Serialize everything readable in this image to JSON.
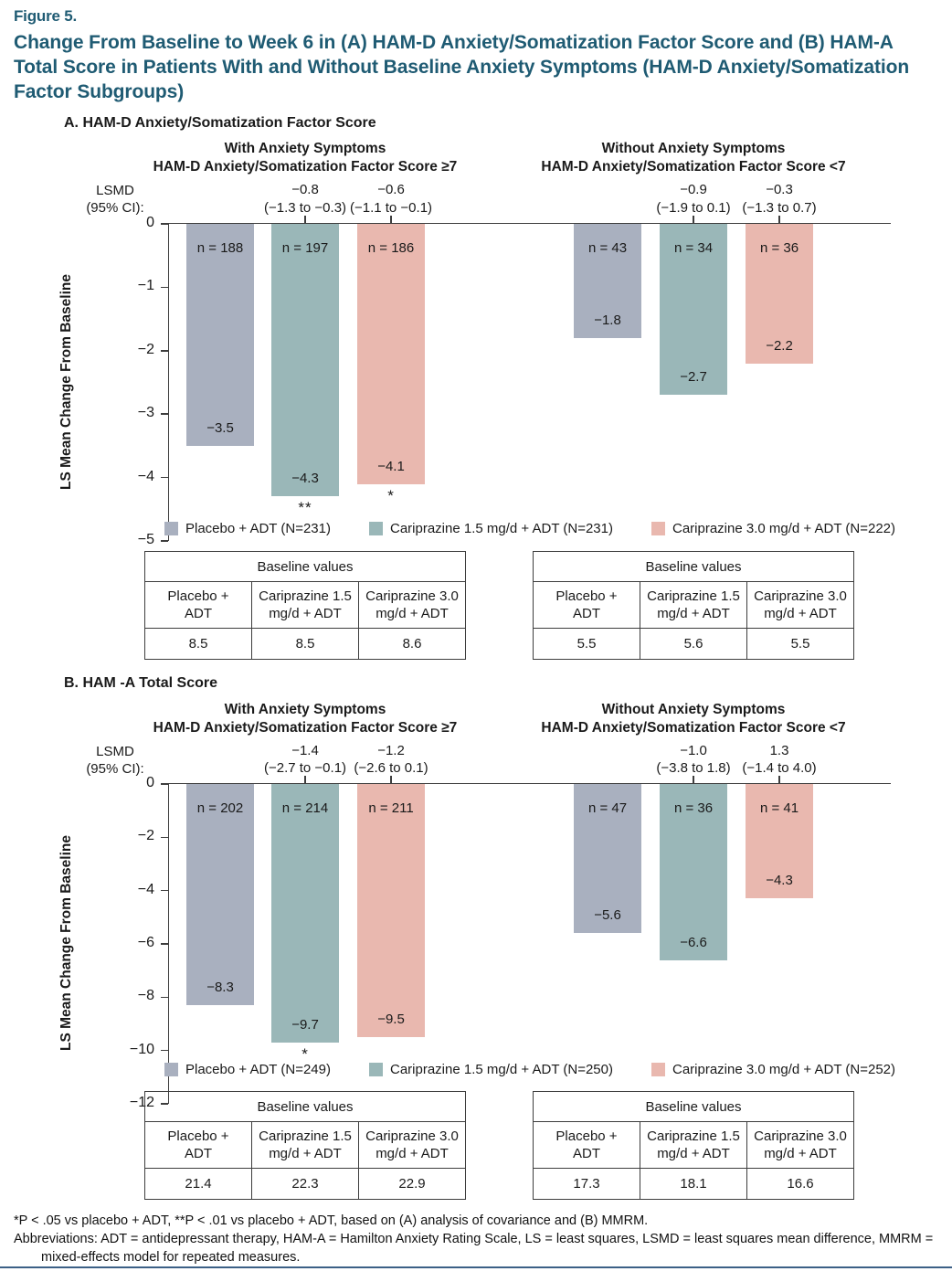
{
  "page": {
    "figure_label": "Figure 5.",
    "title": "Change From Baseline to Week 6 in (A) HAM-D Anxiety/Somatization Factor Score and (B) HAM-A Total Score in Patients With and Without Baseline Anxiety Symptoms (HAM-D Anxiety/Somatization Factor Subgroups)",
    "footnote_line1": "*P < .05 vs placebo + ADT, **P < .01 vs placebo + ADT, based on (A) analysis of covariance and (B) MMRM.",
    "footnote_line2": "Abbreviations: ADT = antidepressant therapy, HAM-A = Hamilton Anxiety Rating Scale, LS = least squares, LSMD = least squares mean difference, MMRM = mixed-effects model for repeated measures.",
    "colors": {
      "title_teal": "#1f5b73",
      "bottom_rule_blue": "#3c6086",
      "axis_gray": "#3d3d3d",
      "series": [
        "#a9b0bf",
        "#9ab7b8",
        "#e9b8af"
      ]
    }
  },
  "chart_data": [
    {
      "type": "bar",
      "panel_label": "A. HAM-D Anxiety/Somatization Factor Score",
      "ylabel": "LS Mean Change From Baseline",
      "ylim": [
        0,
        -5
      ],
      "yticks": [
        "0",
        "−1",
        "−2",
        "−3",
        "−4",
        "−5"
      ],
      "ytick_values": [
        0,
        -1,
        -2,
        -3,
        -4,
        -5
      ],
      "lsmd_header": "LSMD\n(95% CI):",
      "grid": false,
      "legend_position": "bottom",
      "series_names": [
        "Placebo + ADT",
        "Cariprazine 1.5 mg/d + ADT",
        "Cariprazine 3.0 mg/d + ADT"
      ],
      "groups": [
        {
          "title_line1": "With Anxiety Symptoms",
          "title_line2": "HAM-D Anxiety/Somatization Factor Score ≥7",
          "lsmd": [
            {
              "value": "−0.8",
              "ci": "(−1.3 to −0.3)"
            },
            {
              "value": "−0.6",
              "ci": "(−1.1 to −0.1)"
            }
          ],
          "bars": [
            {
              "n_label": "n = 188",
              "value": -3.5,
              "value_label": "−3.5",
              "sig": ""
            },
            {
              "n_label": "n = 197",
              "value": -4.3,
              "value_label": "−4.3",
              "sig": "**"
            },
            {
              "n_label": "n = 186",
              "value": -4.1,
              "value_label": "−4.1",
              "sig": "*"
            }
          ]
        },
        {
          "title_line1": "Without Anxiety Symptoms",
          "title_line2": "HAM-D Anxiety/Somatization Factor Score <7",
          "lsmd": [
            {
              "value": "−0.9",
              "ci": "(−1.9 to 0.1)"
            },
            {
              "value": "−0.3",
              "ci": "(−1.3 to 0.7)"
            }
          ],
          "bars": [
            {
              "n_label": "n = 43",
              "value": -1.8,
              "value_label": "−1.8",
              "sig": ""
            },
            {
              "n_label": "n = 34",
              "value": -2.7,
              "value_label": "−2.7",
              "sig": ""
            },
            {
              "n_label": "n = 36",
              "value": -2.2,
              "value_label": "−2.2",
              "sig": ""
            }
          ]
        }
      ],
      "legend": [
        "Placebo + ADT (N=231)",
        "Cariprazine 1.5 mg/d + ADT (N=231)",
        "Cariprazine 3.0 mg/d + ADT (N=222)"
      ],
      "tables": [
        {
          "title": "Baseline values",
          "columns": [
            [
              "Placebo +",
              "ADT"
            ],
            [
              "Cariprazine 1.5",
              "mg/d + ADT"
            ],
            [
              "Cariprazine 3.0",
              "mg/d + ADT"
            ]
          ],
          "values": [
            "8.5",
            "8.5",
            "8.6"
          ]
        },
        {
          "title": "Baseline values",
          "columns": [
            [
              "Placebo +",
              "ADT"
            ],
            [
              "Cariprazine 1.5",
              "mg/d + ADT"
            ],
            [
              "Cariprazine 3.0",
              "mg/d + ADT"
            ]
          ],
          "values": [
            "5.5",
            "5.6",
            "5.5"
          ]
        }
      ]
    },
    {
      "type": "bar",
      "panel_label": "B. HAM -A Total Score",
      "ylabel": "LS Mean Change From Baseline",
      "ylim": [
        0,
        -12
      ],
      "yticks": [
        "0",
        "−2",
        "−4",
        "−6",
        "−8",
        "−10",
        "−12"
      ],
      "ytick_values": [
        0,
        -2,
        -4,
        -6,
        -8,
        -10,
        -12
      ],
      "lsmd_header": "LSMD\n(95% CI):",
      "grid": false,
      "legend_position": "bottom",
      "series_names": [
        "Placebo + ADT",
        "Cariprazine 1.5 mg/d + ADT",
        "Cariprazine 3.0 mg/d + ADT"
      ],
      "groups": [
        {
          "title_line1": "With Anxiety Symptoms",
          "title_line2": "HAM-D Anxiety/Somatization Factor Score ≥7",
          "lsmd": [
            {
              "value": "−1.4",
              "ci": "(−2.7 to −0.1)"
            },
            {
              "value": "−1.2",
              "ci": "(−2.6 to 0.1)"
            }
          ],
          "bars": [
            {
              "n_label": "n = 202",
              "value": -8.3,
              "value_label": "−8.3",
              "sig": ""
            },
            {
              "n_label": "n = 214",
              "value": -9.7,
              "value_label": "−9.7",
              "sig": "*"
            },
            {
              "n_label": "n = 211",
              "value": -9.5,
              "value_label": "−9.5",
              "sig": ""
            }
          ]
        },
        {
          "title_line1": "Without Anxiety Symptoms",
          "title_line2": "HAM-D Anxiety/Somatization Factor Score <7",
          "lsmd": [
            {
              "value": "−1.0",
              "ci": "(−3.8 to 1.8)"
            },
            {
              "value": "1.3",
              "ci": "(−1.4 to 4.0)"
            }
          ],
          "bars": [
            {
              "n_label": "n = 47",
              "value": -5.6,
              "value_label": "−5.6",
              "sig": ""
            },
            {
              "n_label": "n = 36",
              "value": -6.6,
              "value_label": "−6.6",
              "sig": ""
            },
            {
              "n_label": "n = 41",
              "value": -4.3,
              "value_label": "−4.3",
              "sig": ""
            }
          ]
        }
      ],
      "legend": [
        "Placebo + ADT (N=249)",
        "Cariprazine 1.5 mg/d + ADT (N=250)",
        "Cariprazine 3.0 mg/d + ADT (N=252)"
      ],
      "tables": [
        {
          "title": "Baseline values",
          "columns": [
            [
              "Placebo +",
              "ADT"
            ],
            [
              "Cariprazine 1.5",
              "mg/d + ADT"
            ],
            [
              "Cariprazine 3.0",
              "mg/d + ADT"
            ]
          ],
          "values": [
            "21.4",
            "22.3",
            "22.9"
          ]
        },
        {
          "title": "Baseline values",
          "columns": [
            [
              "Placebo +",
              "ADT"
            ],
            [
              "Cariprazine 1.5",
              "mg/d + ADT"
            ],
            [
              "Cariprazine 3.0",
              "mg/d + ADT"
            ]
          ],
          "values": [
            "17.3",
            "18.1",
            "16.6"
          ]
        }
      ]
    }
  ]
}
